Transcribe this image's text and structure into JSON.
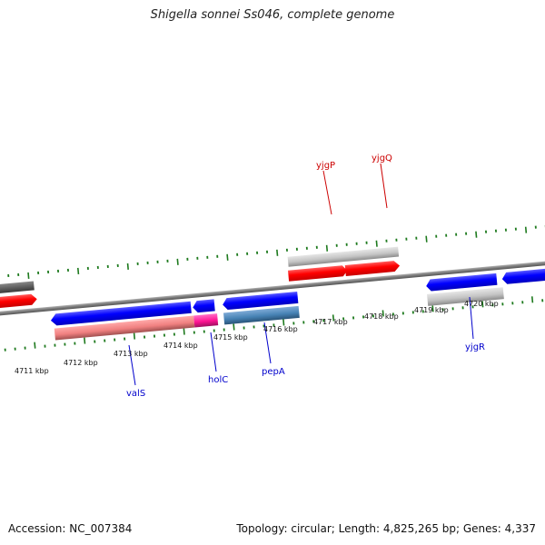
{
  "title": "Shigella sonnei Ss046, complete genome",
  "footer": {
    "accession": "Accession: NC_007384",
    "summary": "Topology: circular; Length: 4,825,265 bp; Genes: 4,337"
  },
  "colors": {
    "forward_gene": "#ff0000",
    "reverse_gene": "#0000ff",
    "forward_feature": "#c8c8c8",
    "reverse_feature": "#f08080",
    "forward_label": "#cc0000",
    "reverse_label": "#0000cc",
    "tick": "#1e7a1e",
    "backbone": "#888888",
    "dark_feature": "#555555"
  },
  "kbp_labels": [
    "4711 kbp",
    "4712 kbp",
    "4713 kbp",
    "4714 kbp",
    "4715 kbp",
    "4716 kbp",
    "4717 kbp",
    "4718 kbp",
    "4719 kbp",
    "4720 kbp"
  ],
  "gene_labels": [
    {
      "name": "yjgP",
      "strand": "forward"
    },
    {
      "name": "yjgQ",
      "strand": "forward"
    },
    {
      "name": "valS",
      "strand": "reverse"
    },
    {
      "name": "holC",
      "strand": "reverse"
    },
    {
      "name": "pepA",
      "strand": "reverse"
    },
    {
      "name": "yjgR",
      "strand": "reverse"
    }
  ]
}
